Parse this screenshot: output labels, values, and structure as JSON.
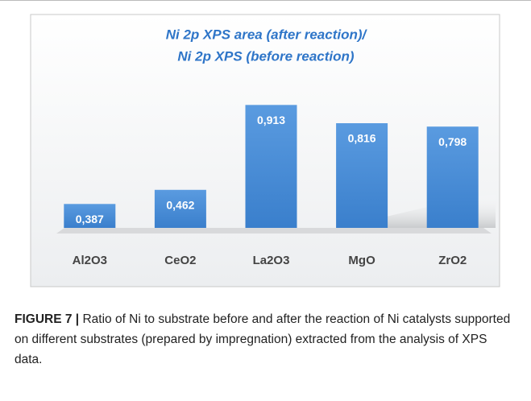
{
  "chart_data": {
    "type": "bar",
    "title": [
      "Ni 2p XPS area (after reaction)/",
      "Ni 2p XPS (before reaction)"
    ],
    "categories": [
      "Al2O3",
      "CeO2",
      "La2O3",
      "MgO",
      "ZrO2"
    ],
    "values": [
      0.387,
      0.462,
      0.913,
      0.816,
      0.798
    ],
    "value_labels": [
      "0,387",
      "0,462",
      "0,913",
      "0,816",
      "0,798"
    ],
    "color": "#3a7fcc",
    "ylim": [
      0.26,
      1.0
    ]
  },
  "caption": {
    "label": "FIGURE 7 |",
    "text": "Ratio of Ni to substrate before and after the reaction of Ni catalysts supported on different substrates (prepared by impregnation) extracted from the analysis of XPS data."
  }
}
